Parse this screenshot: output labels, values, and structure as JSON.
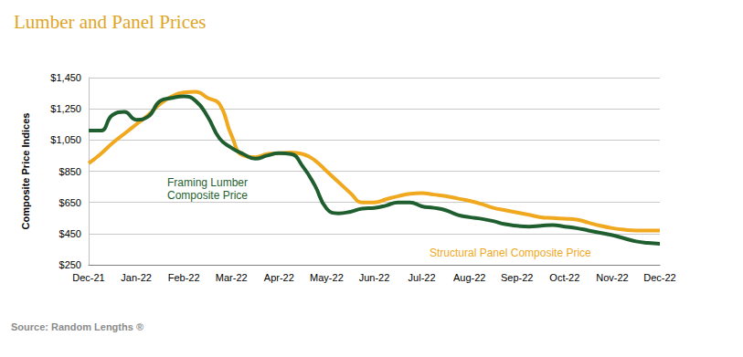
{
  "chart_data": {
    "type": "line",
    "title": "Lumber and Panel Prices",
    "y_label": "Composite Price Indices",
    "source": "Source: Random Lengths ®",
    "categories": [
      "Dec-21",
      null,
      null,
      null,
      "Jan-22",
      null,
      null,
      null,
      "Feb-22",
      null,
      null,
      null,
      "Mar-22",
      null,
      null,
      null,
      "Apr-22",
      null,
      null,
      null,
      "May-22",
      null,
      null,
      null,
      "Jun-22",
      null,
      null,
      null,
      "Jul-22",
      null,
      null,
      null,
      "Aug-22",
      null,
      null,
      null,
      "Sep-22",
      null,
      null,
      null,
      "Oct-22",
      null,
      null,
      null,
      "Nov-22",
      null,
      null,
      null,
      "Dec-22"
    ],
    "series": [
      {
        "name": "Framing Lumber Composite Price",
        "color": "#1f5f2f",
        "values": [
          1110,
          1110,
          1210,
          1230,
          1180,
          1200,
          1300,
          1320,
          1330,
          1300,
          1200,
          1060,
          1000,
          960,
          930,
          950,
          965,
          960,
          880,
          760,
          610,
          580,
          590,
          610,
          615,
          630,
          650,
          650,
          625,
          615,
          600,
          570,
          555,
          545,
          530,
          510,
          500,
          495,
          500,
          505,
          495,
          485,
          470,
          455,
          440,
          420,
          400,
          390,
          385
        ]
      },
      {
        "name": "Structural Panel Composite Price",
        "color": "#f0a81e",
        "values": [
          900,
          960,
          1030,
          1090,
          1150,
          1210,
          1280,
          1330,
          1355,
          1360,
          1320,
          1280,
          1080,
          950,
          940,
          960,
          965,
          970,
          960,
          920,
          850,
          780,
          710,
          650,
          650,
          670,
          690,
          705,
          710,
          700,
          690,
          675,
          660,
          640,
          615,
          600,
          585,
          570,
          555,
          550,
          545,
          540,
          520,
          500,
          485,
          475,
          470,
          470,
          470
        ]
      }
    ],
    "ylim": [
      250,
      1450
    ],
    "yticks": [
      {
        "value": 250,
        "label": "$250"
      },
      {
        "value": 450,
        "label": "$450"
      },
      {
        "value": 650,
        "label": "$650"
      },
      {
        "value": 850,
        "label": "$850"
      },
      {
        "value": 1050,
        "label": "$1,050"
      },
      {
        "value": 1250,
        "label": "$1,250"
      },
      {
        "value": 1450,
        "label": "$1,450"
      }
    ],
    "grid": true
  }
}
